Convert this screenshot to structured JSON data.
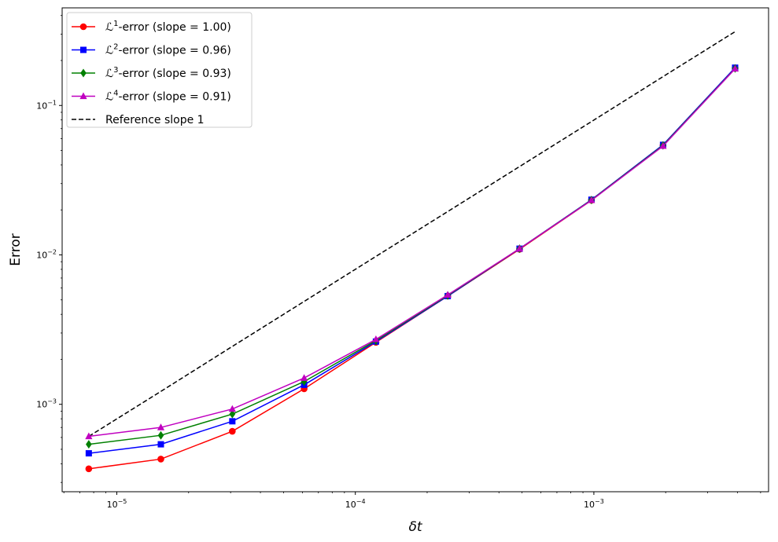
{
  "chart_data": {
    "type": "line",
    "xlabel": "δt",
    "ylabel": "Error",
    "x_scale": "log",
    "y_scale": "log",
    "xlim": [
      5.9e-06,
      0.0054
    ],
    "ylim": [
      0.00026,
      0.45
    ],
    "x_ticks": [
      {
        "value": 1e-05,
        "base": "10",
        "exp": "−5"
      },
      {
        "value": 0.0001,
        "base": "10",
        "exp": "−4"
      },
      {
        "value": 0.001,
        "base": "10",
        "exp": "−3"
      }
    ],
    "y_ticks": [
      {
        "value": 0.001,
        "base": "10",
        "exp": "−3"
      },
      {
        "value": 0.01,
        "base": "10",
        "exp": "−2"
      },
      {
        "value": 0.1,
        "base": "10",
        "exp": "−1"
      }
    ],
    "grid": false,
    "legend_position": "top-left",
    "x": [
      7.63e-06,
      1.53e-05,
      3.05e-05,
      6.1e-05,
      0.000122,
      0.000244,
      0.000488,
      0.000977,
      0.00195,
      0.00391
    ],
    "series": [
      {
        "name": "-error (slope = 1.00)",
        "prefix": "ℒ",
        "sup": "1",
        "color": "#ff0000",
        "marker": "circle",
        "line": "solid",
        "values": [
          0.00037,
          0.00043,
          0.00066,
          0.00127,
          0.0026,
          0.0053,
          0.0109,
          0.0232,
          0.054,
          0.178
        ]
      },
      {
        "name": "-error (slope = 0.96)",
        "prefix": "ℒ",
        "sup": "2",
        "color": "#0000ff",
        "marker": "square",
        "line": "solid",
        "values": [
          0.00047,
          0.00054,
          0.00077,
          0.00135,
          0.00263,
          0.0053,
          0.011,
          0.0234,
          0.0545,
          0.179
        ]
      },
      {
        "name": "-error (slope = 0.93)",
        "prefix": "ℒ",
        "sup": "3",
        "color": "#008000",
        "marker": "diamond",
        "line": "solid",
        "values": [
          0.00054,
          0.00062,
          0.00086,
          0.00142,
          0.00267,
          0.00535,
          0.011,
          0.0233,
          0.054,
          0.177
        ]
      },
      {
        "name": "-error (slope = 0.91)",
        "prefix": "ℒ",
        "sup": "4",
        "color": "#c000c0",
        "marker": "triangle",
        "line": "solid",
        "values": [
          0.00061,
          0.0007,
          0.00093,
          0.0015,
          0.00272,
          0.0054,
          0.011,
          0.0232,
          0.0535,
          0.176
        ]
      },
      {
        "name": "Reference slope 1",
        "color": "#000000",
        "marker": "none",
        "line": "dashed",
        "values": [
          0.00061,
          0.00122,
          0.00244,
          0.00488,
          0.00977,
          0.0195,
          0.039,
          0.078,
          0.156,
          0.312
        ]
      }
    ]
  }
}
